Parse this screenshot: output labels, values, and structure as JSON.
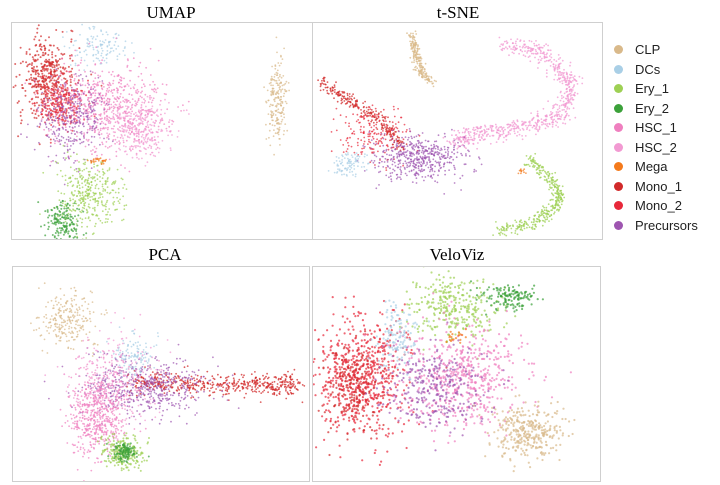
{
  "legend": [
    {
      "name": "CLP",
      "color": "#d9b98a"
    },
    {
      "name": "DCs",
      "color": "#a9cfe6"
    },
    {
      "name": "Ery_1",
      "color": "#9ed054"
    },
    {
      "name": "Ery_2",
      "color": "#3ca13a"
    },
    {
      "name": "HSC_1",
      "color": "#ef7fbf"
    },
    {
      "name": "HSC_2",
      "color": "#f29ad2"
    },
    {
      "name": "Mega",
      "color": "#f47a1c"
    },
    {
      "name": "Mono_1",
      "color": "#d12a2a"
    },
    {
      "name": "Mono_2",
      "color": "#e8283a"
    },
    {
      "name": "Precursors",
      "color": "#9e55b0"
    }
  ],
  "chart_data": [
    {
      "type": "scatter",
      "title": "UMAP",
      "xlabel": "",
      "ylabel": "",
      "grid": false,
      "legend_placement": "right"
    },
    {
      "type": "scatter",
      "title": "t-SNE",
      "xlabel": "",
      "ylabel": "",
      "grid": false,
      "legend_placement": "right"
    },
    {
      "type": "scatter",
      "title": "PCA",
      "xlabel": "",
      "ylabel": "",
      "grid": false,
      "legend_placement": "right"
    },
    {
      "type": "scatter",
      "title": "VeloViz",
      "xlabel": "",
      "ylabel": "",
      "grid": false,
      "legend_placement": "right"
    }
  ]
}
